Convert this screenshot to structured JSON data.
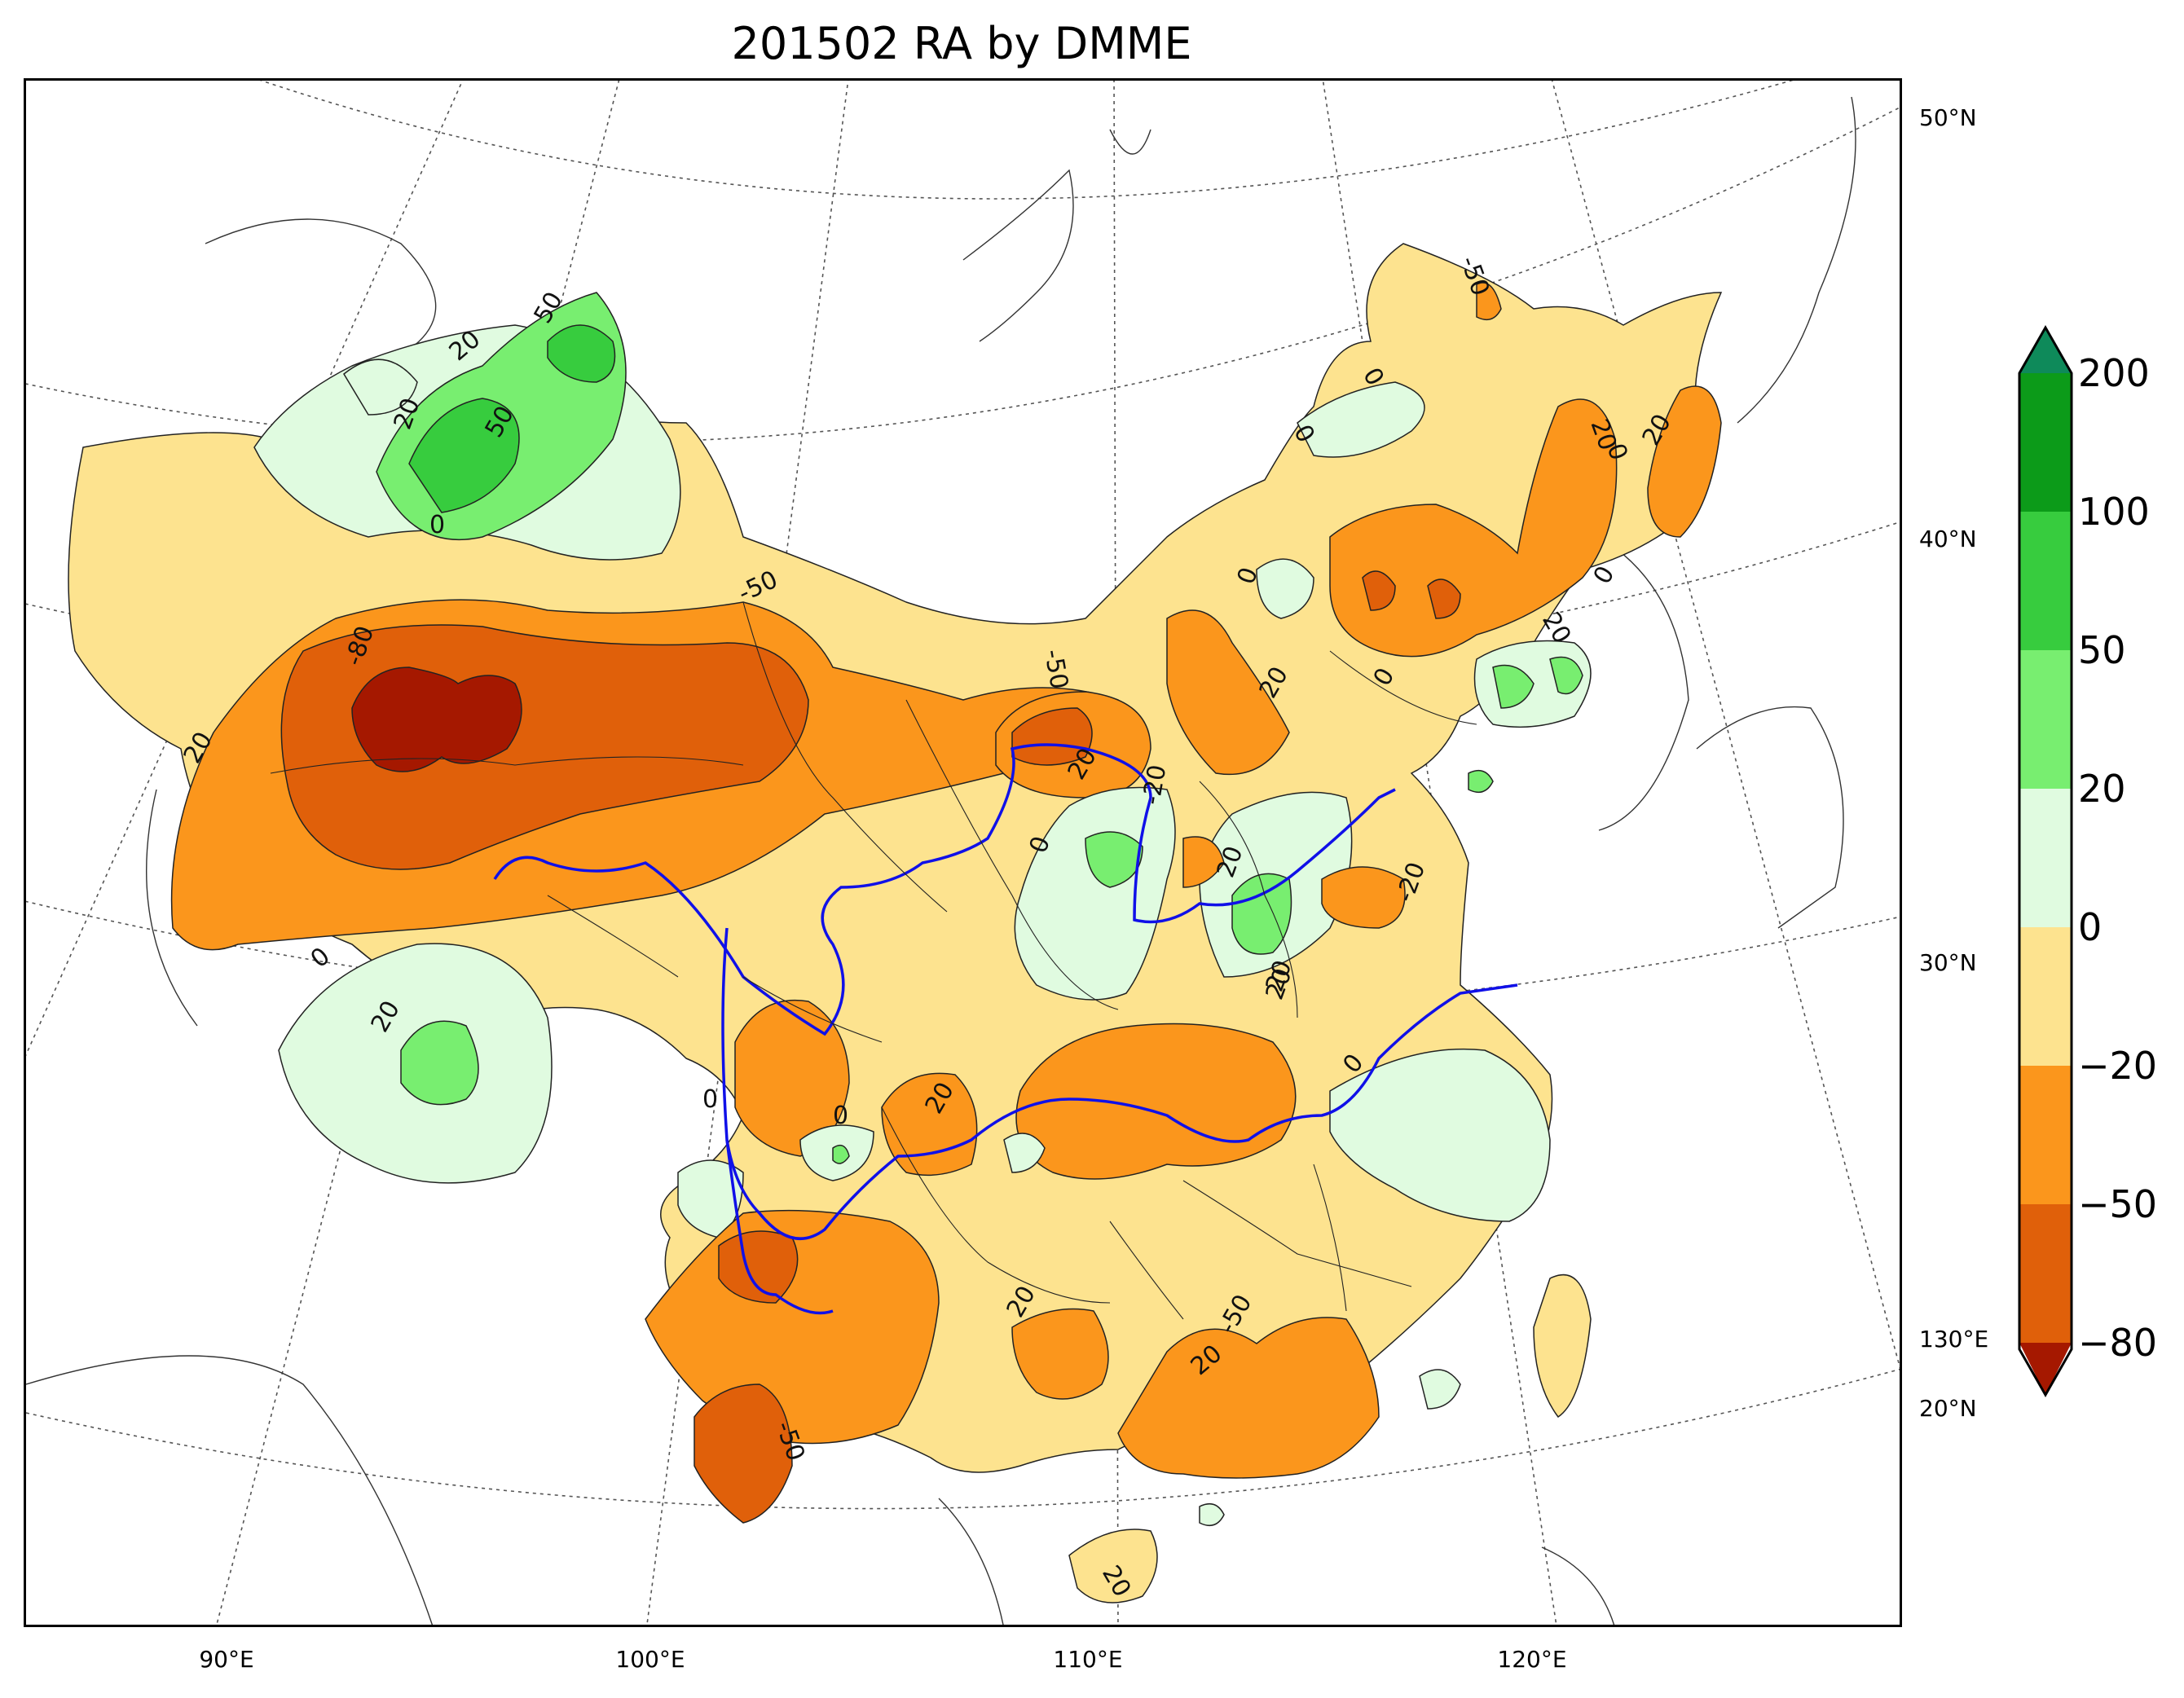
{
  "title": "201502 RA by DMME",
  "lon_labels": [
    "90°E",
    "100°E",
    "110°E",
    "120°E"
  ],
  "lat_labels": [
    "50°N",
    "40°N",
    "30°N",
    "20°N"
  ],
  "corner_lon_label": "130°E",
  "colorbar": {
    "labels": [
      "200",
      "100",
      "50",
      "20",
      "0",
      "−20",
      "−50",
      "−80"
    ],
    "colors": [
      "#0e8a5a",
      "#0c9b19",
      "#37cc3e",
      "#78ee70",
      "#e0fbe0",
      "#fde38f",
      "#fb961c",
      "#e0600a",
      "#a51800"
    ]
  },
  "contour_labels": [
    "50",
    "20",
    "20",
    "50",
    "0",
    "-50",
    "-80",
    "-50",
    "20",
    "0",
    "20",
    "0",
    "20",
    "0",
    "20",
    "-50",
    "20",
    "20",
    "-20",
    "0",
    "0",
    "20",
    "20",
    "-50",
    "20",
    "20",
    "0",
    "0",
    "0",
    "20",
    "0",
    "0",
    "20",
    "0",
    "20",
    "20",
    "-50",
    "-20"
  ]
}
